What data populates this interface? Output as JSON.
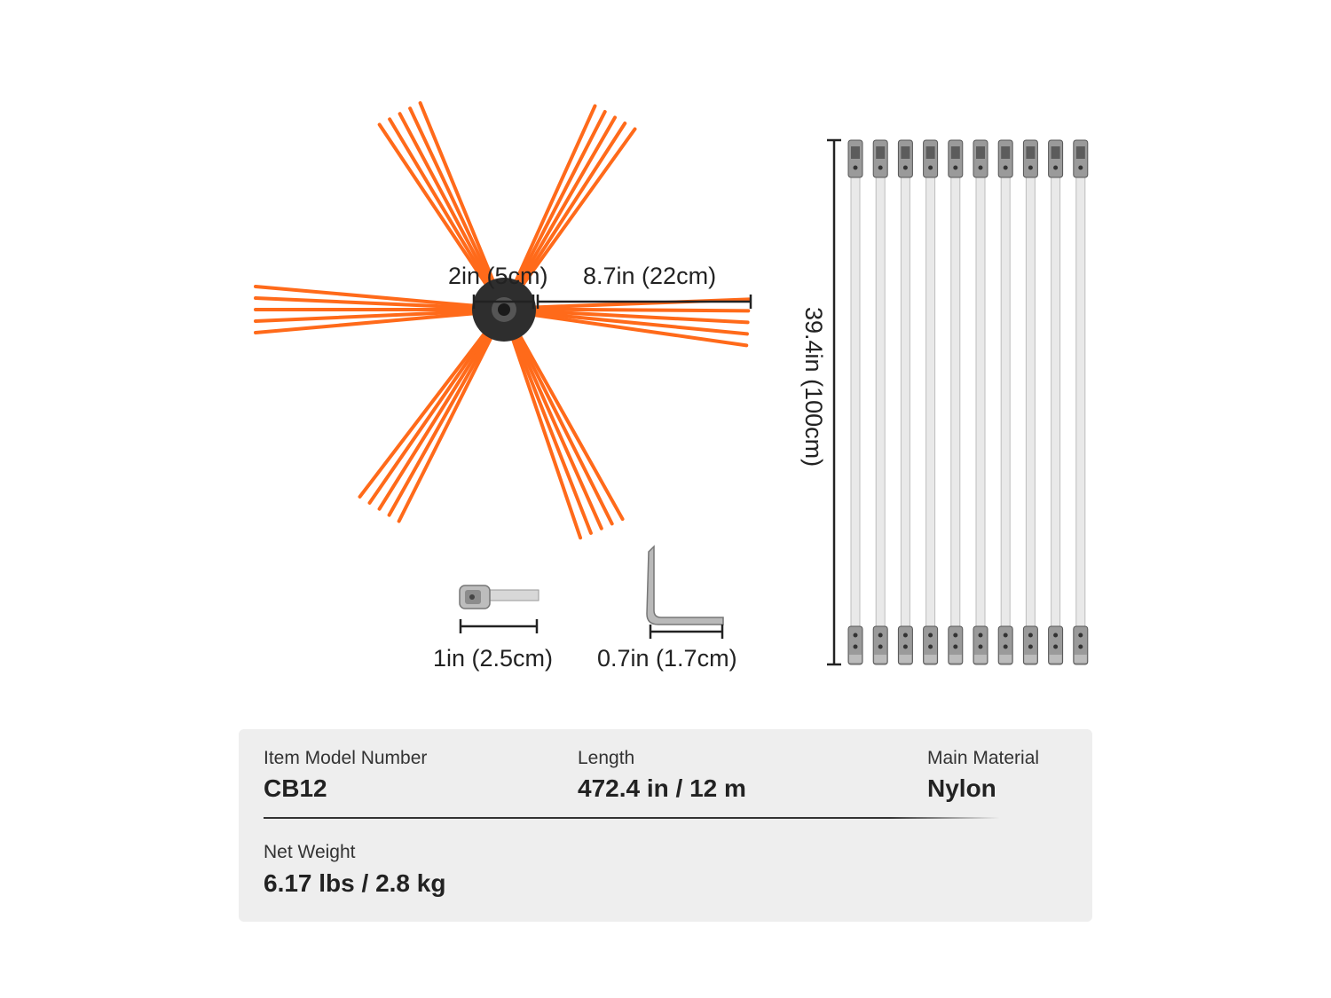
{
  "dimensions": {
    "hub_diameter": "2in (5cm)",
    "bristle_length": "8.7in (22cm)",
    "rod_length": "39.4in (100cm)",
    "adapter_length": "1in (2.5cm)",
    "wrench_length": "0.7in (1.7cm)"
  },
  "specs": {
    "model_label": "Item Model Number",
    "model_value": "CB12",
    "length_label": "Length",
    "length_value": "472.4 in / 12 m",
    "material_label": "Main Material",
    "material_value": "Nylon",
    "weight_label": "Net Weight",
    "weight_value": "6.17 lbs / 2.8 kg"
  },
  "colors": {
    "bristle": "#ff6a1a",
    "hub": "#2e2e2e",
    "rod": "#e9e9e9",
    "spec_bg": "#eeeeee"
  },
  "rod_count": 10
}
